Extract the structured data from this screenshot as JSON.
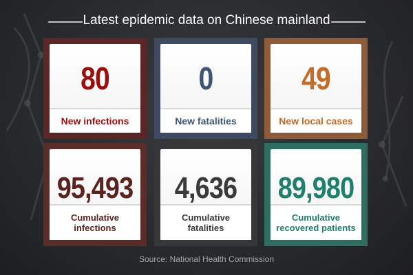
{
  "header": {
    "title": "Latest epidemic data on Chinese mainland"
  },
  "cards": [
    {
      "value": "80",
      "label": "New infections"
    },
    {
      "value": "0",
      "label": "New fatalities"
    },
    {
      "value": "49",
      "label": "New local cases"
    },
    {
      "value": "95,493",
      "label_line1": "Cumulative",
      "label_line2": "infections"
    },
    {
      "value": "4,636",
      "label_line1": "Cumulative",
      "label_line2": "fatalities"
    },
    {
      "value": "89,980",
      "label_line1": "Cumulative",
      "label_line2": "recovered patients"
    }
  ],
  "footer": {
    "source": "Source: National Health Commission"
  },
  "colors": {
    "background": "#2a2b2e",
    "new_infections": "#9b0e0e",
    "new_fatalities": "#3e5473",
    "new_local_cases": "#c46b27",
    "cumulative_infections": "#5a2320",
    "cumulative_fatalities": "#3a3a3a",
    "cumulative_recovered": "#1f7f6c"
  }
}
